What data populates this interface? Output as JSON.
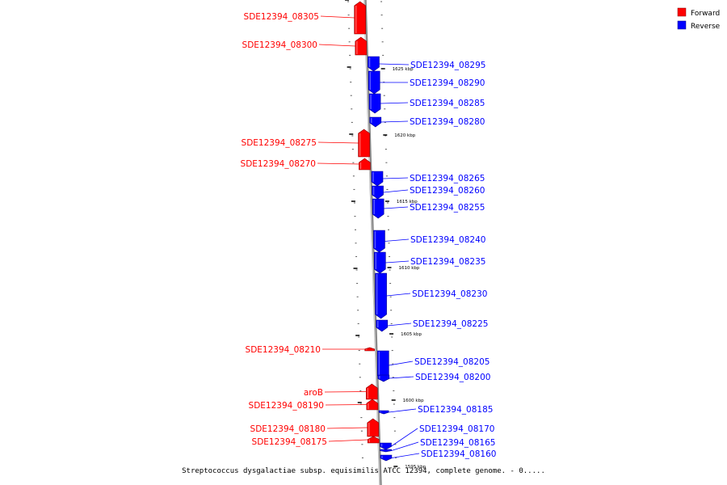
{
  "caption": "Streptococcus dysgalactiae subsp. equisimilis ATCC 12394, complete genome. - 0.....",
  "legend": {
    "forward": {
      "label": "Forward",
      "color": "#ff0000"
    },
    "reverse": {
      "label": "Reverse",
      "color": "#0000ff"
    }
  },
  "ticks": [
    "1625 kbp",
    "1620 kbp",
    "1615 kbp",
    "1610 kbp",
    "1605 kbp",
    "1600 kbp",
    "1595 kbp"
  ],
  "genes": [
    {
      "name": "SDE12394_08305",
      "strand": "forward"
    },
    {
      "name": "SDE12394_08300",
      "strand": "forward"
    },
    {
      "name": "SDE12394_08295",
      "strand": "reverse"
    },
    {
      "name": "SDE12394_08290",
      "strand": "reverse"
    },
    {
      "name": "SDE12394_08285",
      "strand": "reverse"
    },
    {
      "name": "SDE12394_08280",
      "strand": "reverse"
    },
    {
      "name": "SDE12394_08275",
      "strand": "forward"
    },
    {
      "name": "SDE12394_08270",
      "strand": "forward"
    },
    {
      "name": "SDE12394_08265",
      "strand": "reverse"
    },
    {
      "name": "SDE12394_08260",
      "strand": "reverse"
    },
    {
      "name": "SDE12394_08255",
      "strand": "reverse"
    },
    {
      "name": "SDE12394_08240",
      "strand": "reverse"
    },
    {
      "name": "SDE12394_08235",
      "strand": "reverse"
    },
    {
      "name": "SDE12394_08230",
      "strand": "reverse"
    },
    {
      "name": "SDE12394_08225",
      "strand": "reverse"
    },
    {
      "name": "SDE12394_08210",
      "strand": "forward"
    },
    {
      "name": "SDE12394_08205",
      "strand": "reverse"
    },
    {
      "name": "SDE12394_08200",
      "strand": "reverse"
    },
    {
      "name": "aroB",
      "strand": "forward"
    },
    {
      "name": "SDE12394_08190",
      "strand": "forward"
    },
    {
      "name": "SDE12394_08185",
      "strand": "reverse"
    },
    {
      "name": "SDE12394_08180",
      "strand": "forward"
    },
    {
      "name": "SDE12394_08175",
      "strand": "forward"
    },
    {
      "name": "SDE12394_08170",
      "strand": "reverse"
    },
    {
      "name": "SDE12394_08165",
      "strand": "reverse"
    },
    {
      "name": "SDE12394_08160",
      "strand": "reverse"
    }
  ]
}
